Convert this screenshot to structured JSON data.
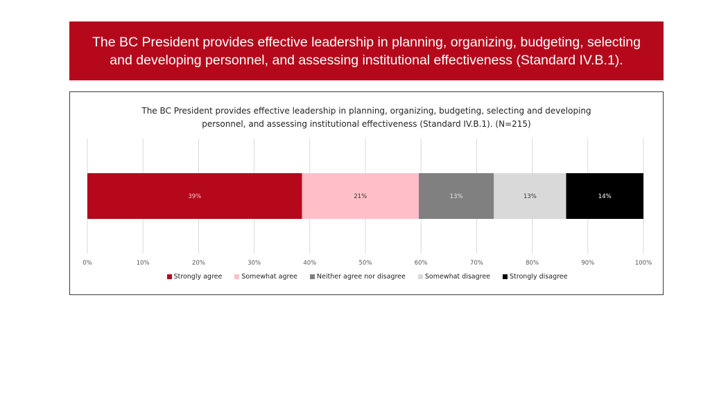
{
  "slide": {
    "title": "The BC President provides effective leadership in planning, organizing, budgeting, selecting and developing personnel, and assessing institutional effectiveness (Standard IV.B.1).",
    "banner_color": "#b5091b"
  },
  "chart_data": {
    "type": "bar",
    "orientation": "horizontal",
    "stacked": true,
    "title": "The BC President provides effective leadership in planning, organizing, budgeting, selecting and developing personnel, and assessing institutional effectiveness (Standard IV.B.1). (N=215)",
    "xlim": [
      0,
      100
    ],
    "xticks": [
      "0%",
      "10%",
      "20%",
      "30%",
      "40%",
      "50%",
      "60%",
      "70%",
      "80%",
      "90%",
      "100%"
    ],
    "grid": "vertical",
    "legend_position": "bottom",
    "series": [
      {
        "name": "Strongly agree",
        "value": 38.6,
        "label": "39%",
        "color": "#b5091b",
        "label_color": "#f3c9cd"
      },
      {
        "name": "Somewhat agree",
        "value": 21.0,
        "label": "21%",
        "color": "#ffbfc8",
        "label_color": "#333333"
      },
      {
        "name": "Neither agree nor disagree",
        "value": 13.5,
        "label": "13%",
        "color": "#808080",
        "label_color": "#e6e6e6"
      },
      {
        "name": "Somewhat disagree",
        "value": 13.0,
        "label": "13%",
        "color": "#d9d9d9",
        "label_color": "#333333"
      },
      {
        "name": "Strongly disagree",
        "value": 13.9,
        "label": "14%",
        "color": "#000000",
        "label_color": "#ffffff"
      }
    ]
  }
}
